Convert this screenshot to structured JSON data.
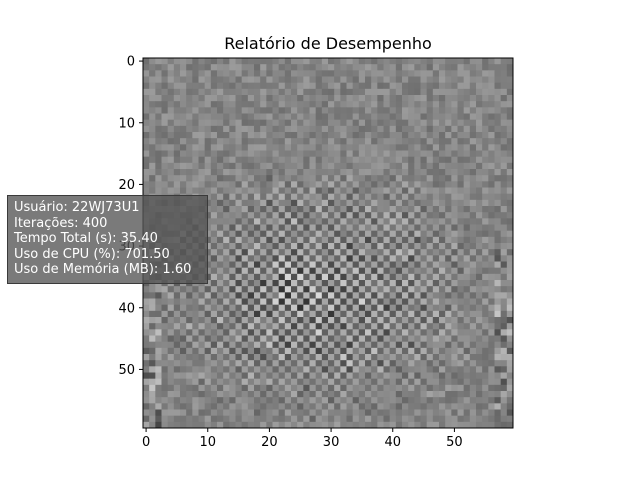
{
  "chart_data": {
    "type": "heatmap",
    "title": "Relatório de Desempenho",
    "colormap": "gray",
    "grid_size": [
      60,
      60
    ],
    "x_ticks": [
      "0",
      "10",
      "20",
      "30",
      "40",
      "50"
    ],
    "y_ticks": [
      "0",
      "10",
      "20",
      "30",
      "40",
      "50"
    ],
    "xlim": [
      -0.5,
      59.5
    ],
    "ylim": [
      59.5,
      -0.5
    ],
    "grid": false
  },
  "info_box": {
    "lines": [
      "Usuário: 22WJ73U1",
      "Iterações: 400",
      "Tempo Total (s): 35.40",
      "Uso de CPU (%): 701.50",
      "Uso de Memória (MB): 1.60"
    ]
  }
}
